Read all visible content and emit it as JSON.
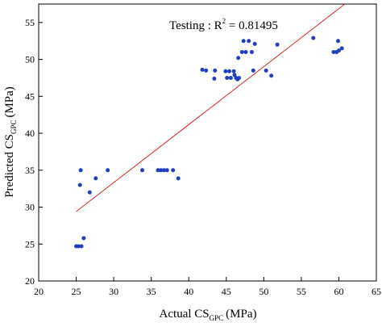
{
  "chart_data": {
    "type": "scatter",
    "title": "",
    "xlabel": {
      "main": "Actual CS",
      "sub": "GPC",
      "unit": "(MPa)"
    },
    "ylabel": {
      "main": "Predicted CS",
      "sub": "GPC",
      "unit": "(MPa)"
    },
    "xlim": [
      20,
      65
    ],
    "ylim": [
      20,
      57.5
    ],
    "xticks": [
      20,
      25,
      30,
      35,
      40,
      45,
      50,
      55,
      60,
      65
    ],
    "yticks": [
      20,
      25,
      30,
      35,
      40,
      45,
      50,
      55
    ],
    "grid": false,
    "annotation": {
      "prefix": "Testing : R",
      "sup": "2",
      "suffix": " = 0.81495"
    },
    "fit_line": {
      "color": "#d62728",
      "x": [
        25.0,
        60.8
      ],
      "y": [
        29.4,
        57.5
      ]
    },
    "point_color": "#1f3fbf",
    "points": [
      [
        25.0,
        24.7
      ],
      [
        25.3,
        24.7
      ],
      [
        25.7,
        24.7
      ],
      [
        26.0,
        25.8
      ],
      [
        25.5,
        33.0
      ],
      [
        25.6,
        35.0
      ],
      [
        26.8,
        32.0
      ],
      [
        27.6,
        33.9
      ],
      [
        29.2,
        35.0
      ],
      [
        33.8,
        35.0
      ],
      [
        35.9,
        35.0
      ],
      [
        36.3,
        35.0
      ],
      [
        36.7,
        35.0
      ],
      [
        37.1,
        35.0
      ],
      [
        37.9,
        35.0
      ],
      [
        38.6,
        33.9
      ],
      [
        41.8,
        48.6
      ],
      [
        42.3,
        48.5
      ],
      [
        43.4,
        47.4
      ],
      [
        43.5,
        48.5
      ],
      [
        44.9,
        48.4
      ],
      [
        45.1,
        47.5
      ],
      [
        45.4,
        48.4
      ],
      [
        45.6,
        47.5
      ],
      [
        46.0,
        48.4
      ],
      [
        46.1,
        47.9
      ],
      [
        46.3,
        47.5
      ],
      [
        46.5,
        47.3
      ],
      [
        46.7,
        47.5
      ],
      [
        46.6,
        50.2
      ],
      [
        47.1,
        51.0
      ],
      [
        47.3,
        52.5
      ],
      [
        47.6,
        51.0
      ],
      [
        48.0,
        52.5
      ],
      [
        48.4,
        51.0
      ],
      [
        48.6,
        48.5
      ],
      [
        48.8,
        52.1
      ],
      [
        50.3,
        48.5
      ],
      [
        51.0,
        47.8
      ],
      [
        51.8,
        52.0
      ],
      [
        56.6,
        52.9
      ],
      [
        59.3,
        51.0
      ],
      [
        59.7,
        51.0
      ],
      [
        59.9,
        52.5
      ],
      [
        60.0,
        51.2
      ],
      [
        60.4,
        51.5
      ]
    ]
  }
}
